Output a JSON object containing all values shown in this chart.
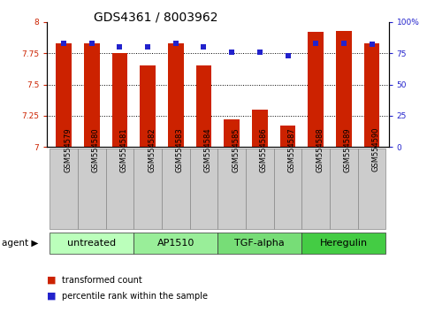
{
  "title": "GDS4361 / 8003962",
  "samples": [
    "GSM554579",
    "GSM554580",
    "GSM554581",
    "GSM554582",
    "GSM554583",
    "GSM554584",
    "GSM554585",
    "GSM554586",
    "GSM554587",
    "GSM554588",
    "GSM554589",
    "GSM554590"
  ],
  "red_values": [
    7.83,
    7.83,
    7.75,
    7.65,
    7.83,
    7.65,
    7.22,
    7.3,
    7.17,
    7.92,
    7.93,
    7.83
  ],
  "blue_values": [
    83,
    83,
    80,
    80,
    83,
    80,
    76,
    76,
    73,
    83,
    83,
    82
  ],
  "ylim_left": [
    7.0,
    8.0
  ],
  "ylim_right": [
    0,
    100
  ],
  "yticks_left": [
    7.0,
    7.25,
    7.5,
    7.75,
    8.0
  ],
  "yticks_right": [
    0,
    25,
    50,
    75,
    100
  ],
  "ytick_labels_left": [
    "7",
    "7.25",
    "7.5",
    "7.75",
    "8"
  ],
  "ytick_labels_right": [
    "0",
    "25",
    "50",
    "75",
    "100%"
  ],
  "hlines": [
    7.25,
    7.5,
    7.75
  ],
  "groups": [
    {
      "label": "untreated",
      "start": 0,
      "end": 2,
      "color": "#bbffbb"
    },
    {
      "label": "AP1510",
      "start": 3,
      "end": 5,
      "color": "#99ee99"
    },
    {
      "label": "TGF-alpha",
      "start": 6,
      "end": 8,
      "color": "#77dd77"
    },
    {
      "label": "Heregulin",
      "start": 9,
      "end": 11,
      "color": "#44cc44"
    }
  ],
  "agent_label": "agent",
  "legend_items": [
    {
      "label": "transformed count",
      "color": "#cc2200"
    },
    {
      "label": "percentile rank within the sample",
      "color": "#2222cc"
    }
  ],
  "bar_color": "#cc2200",
  "dot_color": "#2222cc",
  "bar_width": 0.55,
  "title_fontsize": 10,
  "tick_fontsize": 6.5,
  "sample_fontsize": 6,
  "group_label_fontsize": 8,
  "background_color": "#ffffff",
  "plot_bg_color": "#ffffff",
  "sample_box_color": "#cccccc",
  "sample_box_border": "#888888"
}
